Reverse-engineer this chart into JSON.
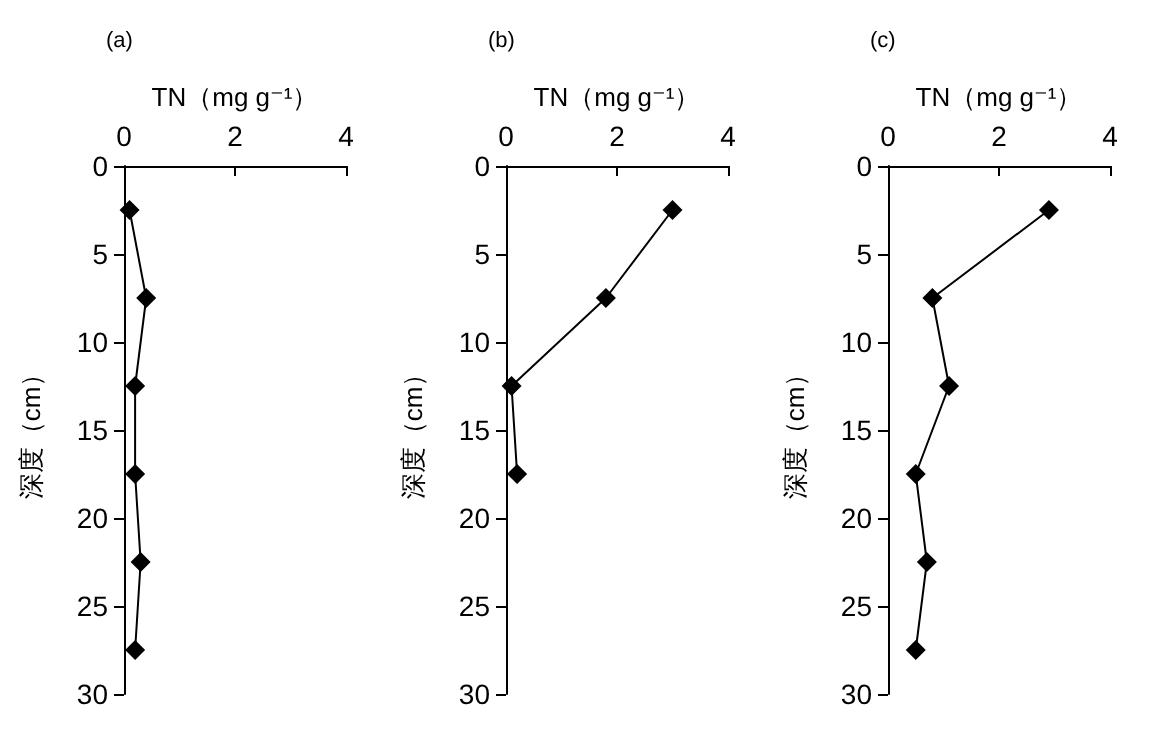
{
  "chart_data": [
    {
      "type": "line",
      "title": "(a)",
      "xlabel": "TN（mg g⁻¹）",
      "ylabel": "深度（cm）",
      "xlim": [
        0,
        4
      ],
      "xticks": [
        0,
        2,
        4
      ],
      "ylim": [
        30,
        0
      ],
      "yticks": [
        0,
        5,
        10,
        15,
        20,
        25,
        30
      ],
      "grid": false,
      "marker": "diamond",
      "line_style": "solid",
      "series": [
        {
          "color": "#000000",
          "x": [
            0.1,
            0.4,
            0.2,
            0.2,
            0.3,
            0.2
          ],
          "values": [
            2.5,
            7.5,
            12.5,
            17.5,
            22.5,
            27.5
          ]
        }
      ]
    },
    {
      "type": "line",
      "title": "(b)",
      "xlabel": "TN（mg g⁻¹）",
      "ylabel": "深度（cm）",
      "xlim": [
        0,
        4
      ],
      "xticks": [
        0,
        2,
        4
      ],
      "ylim": [
        30,
        0
      ],
      "yticks": [
        0,
        5,
        10,
        15,
        20,
        25,
        30
      ],
      "grid": false,
      "marker": "diamond",
      "line_style": "solid",
      "series": [
        {
          "color": "#000000",
          "x": [
            3.0,
            1.8,
            0.1,
            0.2
          ],
          "values": [
            2.5,
            7.5,
            12.5,
            17.5
          ]
        }
      ]
    },
    {
      "type": "line",
      "title": "(c)",
      "xlabel": "TN（mg g⁻¹）",
      "ylabel": "深度（cm）",
      "xlim": [
        0,
        4
      ],
      "xticks": [
        0,
        2,
        4
      ],
      "ylim": [
        30,
        0
      ],
      "yticks": [
        0,
        5,
        10,
        15,
        20,
        25,
        30
      ],
      "grid": false,
      "marker": "diamond",
      "line_style": "solid",
      "series": [
        {
          "color": "#000000",
          "x": [
            2.9,
            0.8,
            1.1,
            0.5,
            0.7,
            0.5
          ],
          "values": [
            2.5,
            7.5,
            12.5,
            17.5,
            22.5,
            27.5
          ]
        }
      ]
    }
  ]
}
